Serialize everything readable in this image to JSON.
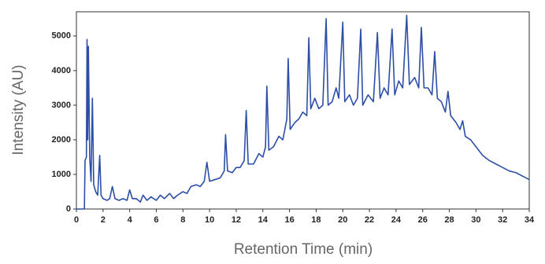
{
  "chart_data": {
    "type": "line",
    "xlabel": "Retention Time (min)",
    "ylabel": "Intensity (AU)",
    "color": "#2c4ea6",
    "x": [
      0,
      0.6,
      0.65,
      0.75,
      0.8,
      0.85,
      0.9,
      1.0,
      1.1,
      1.2,
      1.3,
      1.45,
      1.6,
      1.75,
      1.85,
      2.0,
      2.3,
      2.5,
      2.7,
      2.9,
      3.2,
      3.5,
      3.8,
      4.0,
      4.2,
      4.5,
      4.8,
      5.0,
      5.3,
      5.6,
      6.0,
      6.3,
      6.6,
      7.0,
      7.3,
      7.6,
      8.0,
      8.3,
      8.6,
      9.0,
      9.3,
      9.6,
      9.8,
      10.0,
      10.4,
      10.8,
      11.1,
      11.2,
      11.35,
      11.7,
      12.0,
      12.3,
      12.6,
      12.75,
      12.9,
      13.3,
      13.7,
      14.0,
      14.2,
      14.3,
      14.45,
      14.8,
      15.2,
      15.5,
      15.8,
      15.9,
      16.05,
      16.4,
      16.7,
      17.0,
      17.3,
      17.45,
      17.6,
      17.9,
      18.2,
      18.5,
      18.75,
      18.9,
      19.2,
      19.5,
      19.7,
      20.0,
      20.15,
      20.5,
      20.8,
      21.1,
      21.35,
      21.5,
      21.9,
      22.3,
      22.6,
      22.8,
      23.1,
      23.4,
      23.7,
      23.9,
      24.2,
      24.5,
      24.8,
      25.0,
      25.4,
      25.7,
      25.9,
      26.1,
      26.4,
      26.7,
      26.9,
      27.1,
      27.4,
      27.7,
      27.9,
      28.1,
      28.5,
      28.8,
      29.0,
      29.2,
      29.6,
      30.0,
      30.5,
      31.0,
      31.5,
      32.0,
      32.5,
      33.0,
      33.5,
      34.0
    ],
    "values": [
      0,
      0,
      1400,
      1500,
      4900,
      2000,
      4700,
      1500,
      800,
      3200,
      700,
      500,
      400,
      1550,
      400,
      300,
      250,
      300,
      650,
      300,
      250,
      300,
      250,
      550,
      300,
      300,
      200,
      400,
      250,
      350,
      250,
      400,
      300,
      450,
      300,
      400,
      500,
      450,
      650,
      700,
      650,
      800,
      1350,
      800,
      850,
      900,
      1100,
      2150,
      1100,
      1050,
      1200,
      1200,
      1400,
      2850,
      1300,
      1300,
      1600,
      1500,
      1800,
      3550,
      1700,
      1800,
      2100,
      2000,
      2600,
      4350,
      2300,
      2500,
      2600,
      2800,
      2700,
      4950,
      2900,
      3200,
      2900,
      3000,
      5500,
      3000,
      3100,
      3500,
      3200,
      5400,
      3100,
      3300,
      3000,
      3200,
      5200,
      3000,
      3300,
      3100,
      5100,
      3200,
      3500,
      3300,
      5200,
      3300,
      3700,
      3500,
      5600,
      3600,
      3800,
      3500,
      5250,
      3500,
      3500,
      3300,
      4550,
      3200,
      3100,
      2800,
      3400,
      2700,
      2500,
      2300,
      2550,
      2100,
      2000,
      1800,
      1550,
      1400,
      1300,
      1200,
      1100,
      1050,
      950,
      850
    ],
    "xlim": [
      0,
      34
    ],
    "xticks": [
      0,
      2,
      4,
      6,
      8,
      10,
      12,
      14,
      16,
      18,
      20,
      22,
      24,
      26,
      28,
      30,
      32,
      34
    ],
    "ylim": [
      0,
      5700
    ],
    "yticks": [
      0,
      1000,
      2000,
      3000,
      4000,
      5000
    ]
  }
}
